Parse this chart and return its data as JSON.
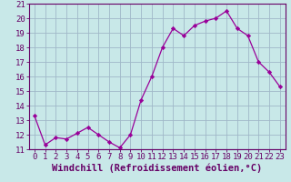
{
  "x": [
    0,
    1,
    2,
    3,
    4,
    5,
    6,
    7,
    8,
    9,
    10,
    11,
    12,
    13,
    14,
    15,
    16,
    17,
    18,
    19,
    20,
    21,
    22,
    23
  ],
  "y": [
    13.3,
    11.3,
    11.8,
    11.7,
    12.1,
    12.5,
    12.0,
    11.5,
    11.1,
    12.0,
    14.4,
    16.0,
    18.0,
    19.3,
    18.8,
    19.5,
    19.8,
    20.0,
    20.5,
    19.3,
    18.8,
    17.0,
    16.3,
    15.3
  ],
  "xlabel": "Windchill (Refroidissement éolien,°C)",
  "ylim": [
    11,
    21
  ],
  "xlim": [
    -0.5,
    23.5
  ],
  "yticks": [
    11,
    12,
    13,
    14,
    15,
    16,
    17,
    18,
    19,
    20,
    21
  ],
  "xticks": [
    0,
    1,
    2,
    3,
    4,
    5,
    6,
    7,
    8,
    9,
    10,
    11,
    12,
    13,
    14,
    15,
    16,
    17,
    18,
    19,
    20,
    21,
    22,
    23
  ],
  "line_color": "#990099",
  "marker_color": "#990099",
  "bg_color": "#c8e8e8",
  "grid_color": "#a0b8c8",
  "tick_label_fontsize": 6.5,
  "xlabel_fontsize": 7.5,
  "font_family": "monospace"
}
